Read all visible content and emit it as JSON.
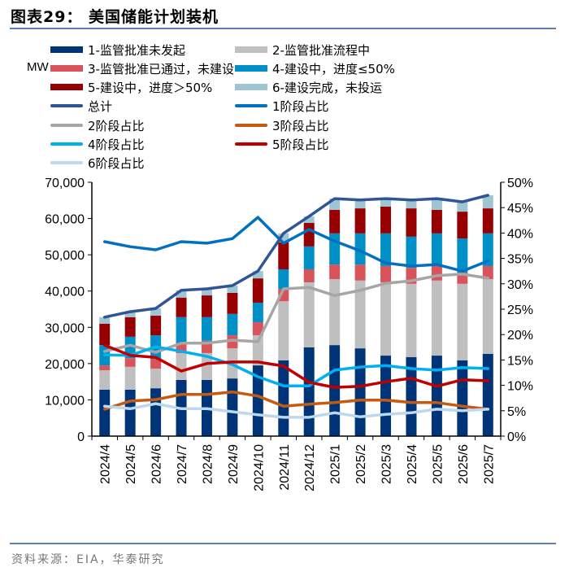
{
  "header": {
    "title": "图表29：  美国储能计划装机"
  },
  "unit_label": "MW",
  "source": "资料来源：EIA，华泰研究",
  "chart_data": {
    "type": "bar+line",
    "stacked": true,
    "categories": [
      "2024/4",
      "2024/5",
      "2024/6",
      "2024/7",
      "2024/8",
      "2024/9",
      "2024/10",
      "2024/11",
      "2024/12",
      "2025/1",
      "2025/2",
      "2025/3",
      "2025/4",
      "2025/5",
      "2025/6",
      "2025/7"
    ],
    "ylabel": "MW",
    "ylim": [
      0,
      70000
    ],
    "y_ticks": [
      "0",
      "10,000",
      "20,000",
      "30,000",
      "40,000",
      "50,000",
      "60,000",
      "70,000"
    ],
    "y2lim": [
      0,
      50
    ],
    "y2_ticks": [
      "0%",
      "5%",
      "10%",
      "15%",
      "20%",
      "25%",
      "30%",
      "35%",
      "40%",
      "45%",
      "50%"
    ],
    "grid": false,
    "legend_position": "top",
    "bar_series": [
      {
        "name": "1-监管批准未发起",
        "color": "#003478",
        "values": [
          12800,
          12800,
          13200,
          15500,
          15500,
          15900,
          19500,
          20900,
          24500,
          25100,
          24200,
          22200,
          21800,
          22200,
          20900,
          22700
        ]
      },
      {
        "name": "2-监管批准流程中",
        "color": "#bfbfbf",
        "values": [
          5350,
          6300,
          5400,
          7400,
          7400,
          8300,
          8300,
          16300,
          17900,
          18200,
          18700,
          20200,
          20200,
          20700,
          21100,
          20600
        ]
      },
      {
        "name": "3-监管批准已通过，未建设",
        "color": "#d9545a",
        "values": [
          1350,
          2400,
          2700,
          2700,
          3400,
          3600,
          3600,
          3400,
          3600,
          4000,
          4400,
          4500,
          4400,
          4000,
          3100,
          3600
        ]
      },
      {
        "name": "4-建设中，进度≤50%",
        "color": "#0090c8",
        "values": [
          5600,
          5900,
          6500,
          7200,
          6500,
          5900,
          5400,
          5400,
          6300,
          8600,
          8600,
          9000,
          8600,
          9000,
          9400,
          9000
        ]
      },
      {
        "name": "5-建设中，进度＞50%",
        "color": "#960000",
        "values": [
          5900,
          5400,
          5400,
          5400,
          6000,
          5800,
          6700,
          7400,
          6500,
          6500,
          6900,
          7400,
          7800,
          6500,
          7400,
          6900
        ]
      },
      {
        "name": "6-建设完成，未投运",
        "color": "#9fc5d3",
        "values": [
          1800,
          1500,
          2000,
          2000,
          1800,
          2000,
          2000,
          2500,
          1800,
          3100,
          2300,
          2200,
          2300,
          3100,
          2700,
          3600
        ]
      }
    ],
    "line_series": [
      {
        "name": "总计",
        "axis": "left",
        "color": "#2f5597",
        "values": [
          32800,
          34300,
          35200,
          40200,
          40600,
          41500,
          45500,
          55900,
          60600,
          65500,
          65100,
          65500,
          65100,
          65500,
          64600,
          66400
        ]
      },
      {
        "name": "1阶段占比",
        "axis": "right",
        "color": "#0070c0",
        "values": [
          38.3,
          37.3,
          36.7,
          38.3,
          38.0,
          38.9,
          43.1,
          38.0,
          40.7,
          38.4,
          36.5,
          34.1,
          33.5,
          33.8,
          32.5,
          34.5
        ]
      },
      {
        "name": "2阶段占比",
        "axis": "right",
        "color": "#a6a6a6",
        "values": [
          16.7,
          17.9,
          16.5,
          18.3,
          18.3,
          18.9,
          18.6,
          29.0,
          29.3,
          27.7,
          28.7,
          30.1,
          30.6,
          31.6,
          31.9,
          31.1
        ]
      },
      {
        "name": "3阶段占比",
        "axis": "right",
        "color": "#c55a11",
        "values": [
          5.3,
          6.9,
          7.2,
          8.2,
          8.2,
          8.7,
          7.9,
          5.9,
          6.3,
          6.6,
          7.1,
          7.1,
          6.6,
          6.6,
          5.9,
          5.3
        ]
      },
      {
        "name": "4阶段占比",
        "axis": "right",
        "color": "#00b0f0",
        "values": [
          16.0,
          15.9,
          17.6,
          16.7,
          15.7,
          14.1,
          11.7,
          9.9,
          9.9,
          13.0,
          13.6,
          13.9,
          13.3,
          13.0,
          13.5,
          13.3
        ]
      },
      {
        "name": "5阶段占比",
        "axis": "right",
        "color": "#c00000",
        "values": [
          17.9,
          15.9,
          15.5,
          12.8,
          14.3,
          14.6,
          14.6,
          13.8,
          10.6,
          9.6,
          9.8,
          10.7,
          11.4,
          9.8,
          11.1,
          10.9
        ]
      },
      {
        "name": "6阶段占比",
        "axis": "right",
        "color": "#bdd7ee",
        "values": [
          5.9,
          5.4,
          6.4,
          5.4,
          5.4,
          4.8,
          4.2,
          3.7,
          3.7,
          4.6,
          3.8,
          4.3,
          4.6,
          5.3,
          5.0,
          5.3
        ]
      }
    ]
  }
}
